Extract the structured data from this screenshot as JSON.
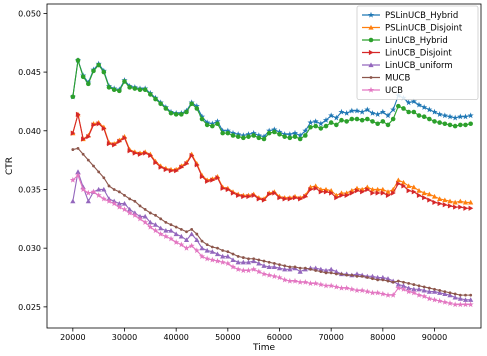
{
  "chart_data": {
    "type": "line",
    "xlabel": "Time",
    "ylabel": "CTR",
    "xlim": [
      15000,
      99000
    ],
    "ylim": [
      0.0232,
      0.0508
    ],
    "xticks": [
      20000,
      30000,
      40000,
      50000,
      60000,
      70000,
      80000,
      90000
    ],
    "yticks": [
      0.025,
      0.03,
      0.035,
      0.04,
      0.045,
      0.05
    ],
    "grid": false,
    "legend_position": "top-right",
    "x_start": 20000,
    "x_step": 1000,
    "series": [
      {
        "name": "PSLinUCB_Hybrid",
        "color": "#1f77b4",
        "marker": "star",
        "values": [
          0.0429,
          0.046,
          0.0447,
          0.0441,
          0.0452,
          0.0457,
          0.0451,
          0.0438,
          0.0436,
          0.0435,
          0.0443,
          0.0438,
          0.0437,
          0.0436,
          0.0436,
          0.0432,
          0.0428,
          0.0424,
          0.042,
          0.0416,
          0.0415,
          0.0415,
          0.0417,
          0.0424,
          0.0421,
          0.0412,
          0.0407,
          0.0406,
          0.0408,
          0.04,
          0.04,
          0.0398,
          0.0397,
          0.0396,
          0.0397,
          0.0398,
          0.0396,
          0.0395,
          0.04,
          0.0401,
          0.0399,
          0.0397,
          0.0397,
          0.0398,
          0.0396,
          0.04,
          0.0407,
          0.0408,
          0.0406,
          0.0409,
          0.0413,
          0.0411,
          0.0416,
          0.0415,
          0.0417,
          0.0417,
          0.0416,
          0.0418,
          0.0415,
          0.0414,
          0.0416,
          0.0413,
          0.0418,
          0.043,
          0.0428,
          0.0424,
          0.0425,
          0.0422,
          0.042,
          0.0418,
          0.0416,
          0.0414,
          0.0413,
          0.0412,
          0.0411,
          0.0412,
          0.0412,
          0.0413
        ]
      },
      {
        "name": "PSLinUCB_Disjoint",
        "color": "#ff7f0e",
        "marker": "triangle-up",
        "values": [
          0.0398,
          0.0414,
          0.0393,
          0.0396,
          0.0406,
          0.0407,
          0.0403,
          0.039,
          0.0389,
          0.0392,
          0.0395,
          0.0384,
          0.0382,
          0.0381,
          0.0382,
          0.038,
          0.0374,
          0.037,
          0.0368,
          0.0367,
          0.0367,
          0.037,
          0.0373,
          0.038,
          0.0372,
          0.0362,
          0.0358,
          0.0359,
          0.0361,
          0.0352,
          0.0351,
          0.0348,
          0.0346,
          0.0345,
          0.0345,
          0.0346,
          0.0343,
          0.0342,
          0.0347,
          0.0348,
          0.0344,
          0.0343,
          0.0343,
          0.0344,
          0.0343,
          0.0345,
          0.0352,
          0.0353,
          0.035,
          0.035,
          0.0349,
          0.0345,
          0.0347,
          0.0347,
          0.0349,
          0.0351,
          0.035,
          0.0352,
          0.035,
          0.035,
          0.035,
          0.0348,
          0.035,
          0.0358,
          0.0356,
          0.0353,
          0.0352,
          0.0349,
          0.0347,
          0.0346,
          0.0344,
          0.0342,
          0.0341,
          0.034,
          0.0339,
          0.034,
          0.0339,
          0.0339
        ]
      },
      {
        "name": "LinUCB_Hybrid",
        "color": "#2ca02c",
        "marker": "circle",
        "values": [
          0.0429,
          0.046,
          0.0446,
          0.044,
          0.0451,
          0.0456,
          0.045,
          0.0437,
          0.0435,
          0.0434,
          0.0442,
          0.0437,
          0.0436,
          0.0435,
          0.0435,
          0.0431,
          0.0427,
          0.0423,
          0.0419,
          0.0415,
          0.0414,
          0.0414,
          0.0416,
          0.0423,
          0.0419,
          0.041,
          0.0405,
          0.0404,
          0.0406,
          0.0398,
          0.0398,
          0.0396,
          0.0395,
          0.0394,
          0.0395,
          0.0396,
          0.0394,
          0.0393,
          0.0398,
          0.0399,
          0.0397,
          0.0395,
          0.0394,
          0.0395,
          0.0393,
          0.0396,
          0.0403,
          0.0404,
          0.0402,
          0.0404,
          0.0407,
          0.0405,
          0.0409,
          0.0408,
          0.041,
          0.041,
          0.0409,
          0.041,
          0.0408,
          0.0406,
          0.0408,
          0.0405,
          0.041,
          0.0421,
          0.0419,
          0.0416,
          0.0416,
          0.0413,
          0.0412,
          0.041,
          0.0408,
          0.0407,
          0.0406,
          0.0405,
          0.0404,
          0.0405,
          0.0405,
          0.0406
        ]
      },
      {
        "name": "LinUCB_Disjoint",
        "color": "#d62728",
        "marker": "triangle-right",
        "values": [
          0.0398,
          0.0414,
          0.0393,
          0.0395,
          0.0405,
          0.0406,
          0.0402,
          0.0389,
          0.0388,
          0.0391,
          0.0394,
          0.0383,
          0.0381,
          0.038,
          0.0381,
          0.0379,
          0.0373,
          0.0369,
          0.0367,
          0.0366,
          0.0366,
          0.0369,
          0.0372,
          0.0379,
          0.0371,
          0.0361,
          0.0357,
          0.0358,
          0.036,
          0.0351,
          0.035,
          0.0347,
          0.0345,
          0.0344,
          0.0344,
          0.0345,
          0.0342,
          0.0341,
          0.0346,
          0.0347,
          0.0343,
          0.0342,
          0.0342,
          0.0343,
          0.0342,
          0.0344,
          0.035,
          0.0351,
          0.0348,
          0.0348,
          0.0347,
          0.0343,
          0.0345,
          0.0345,
          0.0347,
          0.0349,
          0.0348,
          0.035,
          0.0347,
          0.0347,
          0.0347,
          0.0345,
          0.0347,
          0.0355,
          0.0353,
          0.0349,
          0.0348,
          0.0345,
          0.0343,
          0.0341,
          0.0339,
          0.0338,
          0.0337,
          0.0336,
          0.0335,
          0.0335,
          0.0334,
          0.0334
        ]
      },
      {
        "name": "LinUCB_uniform",
        "color": "#9467bd",
        "marker": "triangle-up",
        "values": [
          0.034,
          0.0365,
          0.0352,
          0.034,
          0.0348,
          0.035,
          0.035,
          0.0342,
          0.034,
          0.0338,
          0.0338,
          0.0333,
          0.033,
          0.0327,
          0.0327,
          0.0322,
          0.032,
          0.0317,
          0.0315,
          0.0315,
          0.0312,
          0.031,
          0.0307,
          0.0312,
          0.0307,
          0.03,
          0.0298,
          0.0297,
          0.0295,
          0.0293,
          0.0293,
          0.029,
          0.0288,
          0.0288,
          0.0288,
          0.0289,
          0.0287,
          0.0285,
          0.0284,
          0.0284,
          0.0283,
          0.0282,
          0.0282,
          0.0283,
          0.028,
          0.0282,
          0.0283,
          0.0283,
          0.0282,
          0.0281,
          0.0282,
          0.028,
          0.0278,
          0.0278,
          0.0277,
          0.0278,
          0.0277,
          0.0276,
          0.0276,
          0.0275,
          0.0275,
          0.0274,
          0.0272,
          0.0269,
          0.0268,
          0.0266,
          0.0265,
          0.0265,
          0.0264,
          0.0263,
          0.0263,
          0.0262,
          0.0261,
          0.026,
          0.0258,
          0.0257,
          0.0256,
          0.0256
        ]
      },
      {
        "name": "MUCB",
        "color": "#8c564b",
        "marker": "dot",
        "values": [
          0.0384,
          0.0385,
          0.038,
          0.0375,
          0.037,
          0.0365,
          0.036,
          0.0353,
          0.035,
          0.0348,
          0.0345,
          0.0342,
          0.034,
          0.0336,
          0.0333,
          0.033,
          0.0328,
          0.0325,
          0.0322,
          0.032,
          0.0318,
          0.0316,
          0.0314,
          0.0316,
          0.0312,
          0.0306,
          0.0303,
          0.0301,
          0.03,
          0.0298,
          0.0297,
          0.0295,
          0.0293,
          0.0292,
          0.0291,
          0.0291,
          0.029,
          0.0289,
          0.0288,
          0.0287,
          0.0286,
          0.0285,
          0.0284,
          0.0284,
          0.0283,
          0.0283,
          0.0282,
          0.0281,
          0.028,
          0.0279,
          0.0279,
          0.0278,
          0.0278,
          0.0277,
          0.0277,
          0.0276,
          0.0276,
          0.0275,
          0.0274,
          0.0273,
          0.0273,
          0.0272,
          0.0271,
          0.0272,
          0.0271,
          0.027,
          0.0269,
          0.0268,
          0.0267,
          0.0266,
          0.0265,
          0.0264,
          0.0263,
          0.0262,
          0.0261,
          0.026,
          0.026,
          0.026
        ]
      },
      {
        "name": "UCB",
        "color": "#e377c2",
        "marker": "star",
        "values": [
          0.0358,
          0.0362,
          0.035,
          0.0347,
          0.0348,
          0.0345,
          0.0342,
          0.034,
          0.0338,
          0.0335,
          0.0333,
          0.033,
          0.0328,
          0.0325,
          0.0322,
          0.0318,
          0.0315,
          0.0312,
          0.031,
          0.0308,
          0.0305,
          0.0303,
          0.03,
          0.0302,
          0.0298,
          0.0293,
          0.0291,
          0.029,
          0.0289,
          0.0288,
          0.0287,
          0.0284,
          0.0282,
          0.0281,
          0.0281,
          0.0282,
          0.028,
          0.0278,
          0.0277,
          0.0276,
          0.0275,
          0.0273,
          0.0272,
          0.0272,
          0.0271,
          0.0271,
          0.027,
          0.027,
          0.0269,
          0.0268,
          0.0268,
          0.0267,
          0.0266,
          0.0266,
          0.0265,
          0.0264,
          0.0264,
          0.0263,
          0.0262,
          0.0262,
          0.0261,
          0.026,
          0.026,
          0.0266,
          0.0265,
          0.0263,
          0.0262,
          0.026,
          0.0259,
          0.0257,
          0.0256,
          0.0255,
          0.0254,
          0.0253,
          0.0252,
          0.0252,
          0.0252,
          0.0252
        ]
      }
    ]
  }
}
